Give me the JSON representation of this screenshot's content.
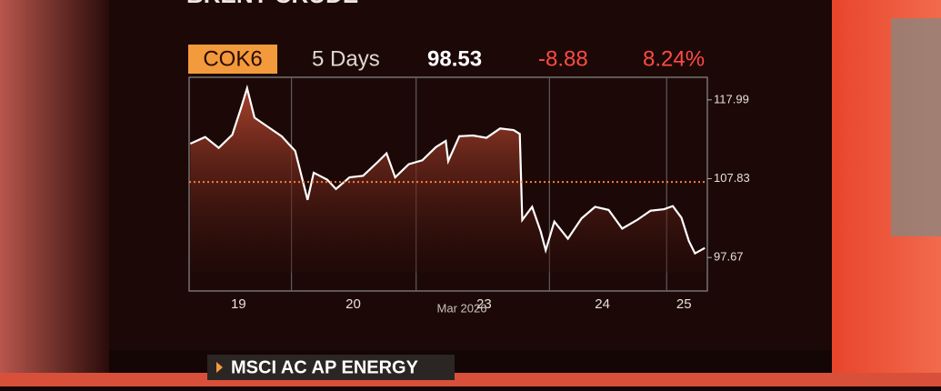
{
  "banner": "BRENT CRUDE",
  "header": {
    "ticker": "COK6",
    "period": "5 Days",
    "last": "98.53",
    "change": "-8.88",
    "change_pct": "8.24%"
  },
  "lower_banner": "MSCI AC AP ENERGY",
  "chart_data": {
    "type": "area",
    "x_label": "Mar 2026",
    "series": [
      {
        "color": "#ffffff",
        "x": [
          0.16,
          0.28,
          0.39,
          0.5,
          0.57,
          0.62,
          0.68,
          0.79,
          0.9,
          1.01,
          1.11,
          1.16,
          1.27,
          1.34,
          1.45,
          1.56,
          1.68,
          1.75,
          1.82,
          1.93,
          2.04,
          2.15,
          2.23,
          2.25,
          2.34,
          2.45,
          2.56,
          2.67,
          2.78,
          2.83,
          2.85,
          2.93,
          3.0,
          3.04,
          3.11,
          3.22,
          3.33,
          3.44,
          3.55,
          3.66,
          3.78,
          3.89,
          4.0,
          4.07,
          4.14,
          4.2,
          4.25,
          4.33
        ],
        "values": [
          112.35,
          113.2,
          111.8,
          113.5,
          116.9,
          119.5,
          115.7,
          114.5,
          113.3,
          111.4,
          105.1,
          108.6,
          107.7,
          106.5,
          108.0,
          108.2,
          110.0,
          111.1,
          108.0,
          109.7,
          110.2,
          111.9,
          112.7,
          110.1,
          113.3,
          113.4,
          113.1,
          114.3,
          114.1,
          113.6,
          102.5,
          104.2,
          101.0,
          98.6,
          102.3,
          100.1,
          102.7,
          104.2,
          103.8,
          101.4,
          102.5,
          103.7,
          103.9,
          104.3,
          102.8,
          99.8,
          98.2,
          98.9
        ]
      }
    ],
    "reference_line": 107.41,
    "xlim": [
      0.15,
      4.35
    ],
    "xticks": [
      {
        "value": 0.55,
        "label": "19"
      },
      {
        "value": 1.48,
        "label": "20"
      },
      {
        "value": 2.54,
        "label": "23"
      },
      {
        "value": 3.5,
        "label": "24"
      },
      {
        "value": 4.16,
        "label": "25"
      }
    ],
    "vgrid": [
      0.98,
      1.99,
      3.07,
      4.02
    ],
    "ylim": [
      95.7,
      120.9
    ],
    "yticks": [
      97.67,
      107.83,
      117.99
    ]
  }
}
